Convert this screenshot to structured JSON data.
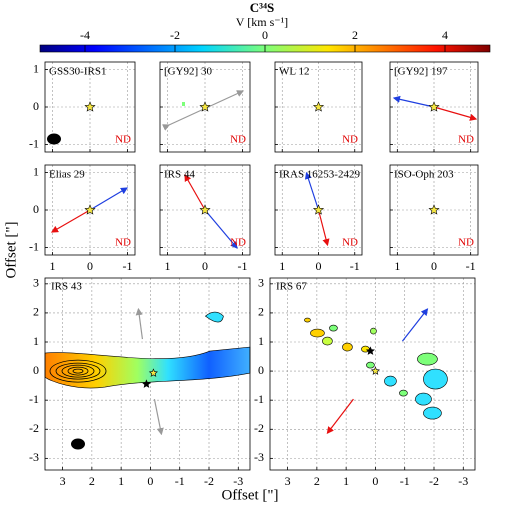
{
  "chart_data": {
    "type": "velocity-map-grid",
    "colorbar": {
      "title": "C³⁴S",
      "label": "V [km s⁻¹]",
      "lim": [
        -5,
        5
      ],
      "ticks": [
        -4,
        -2,
        0,
        2,
        4
      ]
    },
    "small_panels": {
      "xlim": [
        1.2,
        -1.2
      ],
      "ylim": [
        -1.2,
        1.2
      ],
      "xticks": [
        1,
        0,
        -1
      ],
      "yticks": [
        1,
        0,
        -1
      ],
      "panels": [
        {
          "name": "GSS30-IRS1",
          "note": "ND"
        },
        {
          "name": "[GY92] 30",
          "note": "ND"
        },
        {
          "name": "WL 12",
          "note": "ND"
        },
        {
          "name": "[GY92] 197",
          "note": "ND"
        },
        {
          "name": "Elias 29",
          "note": "ND"
        },
        {
          "name": "IRS 44",
          "note": "ND"
        },
        {
          "name": "IRAS 16253-2429",
          "note": "ND"
        },
        {
          "name": "ISO-Oph 203",
          "note": "ND"
        }
      ]
    },
    "large_panels": {
      "xlim": [
        3.6,
        -3.4
      ],
      "ylim": [
        -3.4,
        3.2
      ],
      "xticks": [
        3,
        2,
        1,
        0,
        -1,
        -2,
        -3
      ],
      "yticks": [
        3,
        2,
        1,
        0,
        -1,
        -2,
        -3
      ],
      "panels": [
        {
          "name": "IRS 43"
        },
        {
          "name": "IRS 67"
        }
      ]
    },
    "xlabel": "Offset [\"]",
    "ylabel": "Offset [\"]"
  }
}
